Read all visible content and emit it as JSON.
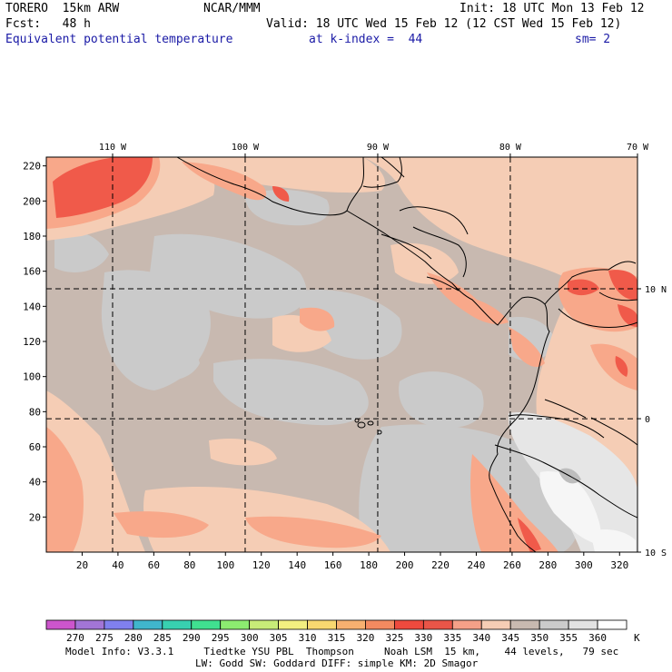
{
  "header": {
    "model": "TORERO  15km ARW",
    "center": "NCAR/MMM",
    "init": "Init: 18 UTC Mon 13 Feb 12",
    "fcst": "Fcst:   48 h",
    "valid": "Valid: 18 UTC Wed 15 Feb 12 (12 CST Wed 15 Feb 12)",
    "field": "Equivalent potential temperature",
    "level": "at k-index =  44",
    "smooth": "sm= 2"
  },
  "map": {
    "top_lon_labels": [
      "110 W",
      "100 W",
      "90 W",
      "80 W",
      "70 W"
    ],
    "left_grid_labels": [
      "220",
      "200",
      "180",
      "160",
      "140",
      "120",
      "100",
      "80",
      "60",
      "40",
      "20"
    ],
    "bottom_grid_labels": [
      "20",
      "40",
      "60",
      "80",
      "100",
      "120",
      "140",
      "160",
      "180",
      "200",
      "220",
      "240",
      "260",
      "280",
      "300",
      "320"
    ],
    "right_lat_labels": [
      "10 N",
      "0",
      "10 S"
    ],
    "grid_x_max": 330,
    "grid_y_max": 225,
    "lon_lines_grid_x": [
      37,
      111,
      185,
      259
    ],
    "lat_lines_grid_y": [
      150,
      76
    ],
    "background_color": "#c8b9b0",
    "colors": {
      "gray": "#cacaca",
      "tan": "#f5cdb5",
      "salmon": "#f8a88a",
      "red": "#f05a4a",
      "light_gray": "#e6e6e6",
      "white": "#f6f6f6",
      "dark_gray": "#bdbdbd"
    }
  },
  "colorbar": {
    "colors": [
      "#cc55cc",
      "#a275d6",
      "#8080ee",
      "#40b6cc",
      "#38d0b0",
      "#40e090",
      "#8cec70",
      "#c8ec78",
      "#f2ef80",
      "#f8d870",
      "#f7b070",
      "#f38a60",
      "#ee4a3e",
      "#e95548",
      "#f5a088",
      "#f6cdb5",
      "#c8b9b0",
      "#cbcbcb",
      "#e2e2e2",
      "#ffffff"
    ],
    "labels": [
      "270",
      "275",
      "280",
      "285",
      "290",
      "295",
      "300",
      "305",
      "310",
      "315",
      "320",
      "325",
      "330",
      "335",
      "340",
      "345",
      "350",
      "355",
      "360"
    ],
    "unit": "K"
  },
  "footer": {
    "line1": "Model Info: V3.3.1     Tiedtke YSU PBL  Thompson     Noah LSM  15 km,    44 levels,   79 sec",
    "line2": "LW: Godd SW: Goddard DIFF: simple KM: 2D Smagor"
  }
}
